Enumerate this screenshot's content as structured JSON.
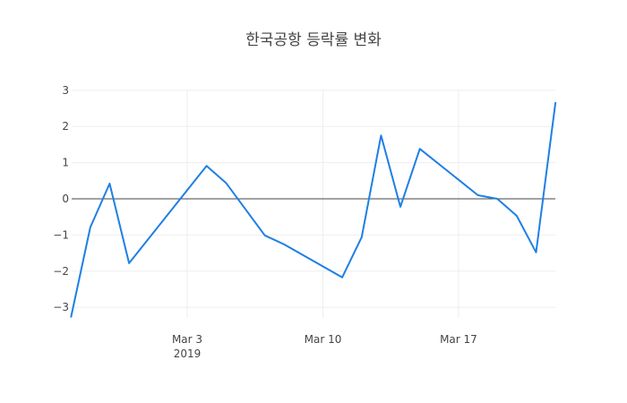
{
  "chart_data": {
    "type": "line",
    "title": "한국공항 등락률 변화",
    "xlabel": "",
    "ylabel": "",
    "x": [
      "2019-02-25",
      "2019-02-26",
      "2019-02-27",
      "2019-02-28",
      "2019-03-04",
      "2019-03-05",
      "2019-03-07",
      "2019-03-08",
      "2019-03-11",
      "2019-03-12",
      "2019-03-13",
      "2019-03-14",
      "2019-03-15",
      "2019-03-18",
      "2019-03-19",
      "2019-03-20",
      "2019-03-21",
      "2019-03-22"
    ],
    "series": [
      {
        "name": "등락률",
        "color": "#1f7fe5",
        "values": [
          -3.28,
          -0.79,
          0.42,
          -1.78,
          0.91,
          0.44,
          -1.01,
          -1.26,
          -2.17,
          -1.06,
          1.75,
          -0.22,
          1.38,
          0.1,
          0.0,
          -0.47,
          -1.48,
          2.67
        ]
      }
    ],
    "x_ticks": [
      {
        "date": "2019-03-03",
        "label": "Mar 3",
        "sublabel": "2019"
      },
      {
        "date": "2019-03-10",
        "label": "Mar 10",
        "sublabel": ""
      },
      {
        "date": "2019-03-17",
        "label": "Mar 17",
        "sublabel": ""
      }
    ],
    "y_ticks": [
      -3,
      -2,
      -1,
      0,
      1,
      2,
      3
    ],
    "ylim": [
      -3.3,
      3.0
    ],
    "xlim": [
      "2019-02-25",
      "2019-03-22"
    ],
    "grid": true,
    "zeroline": true,
    "legend": "none"
  }
}
